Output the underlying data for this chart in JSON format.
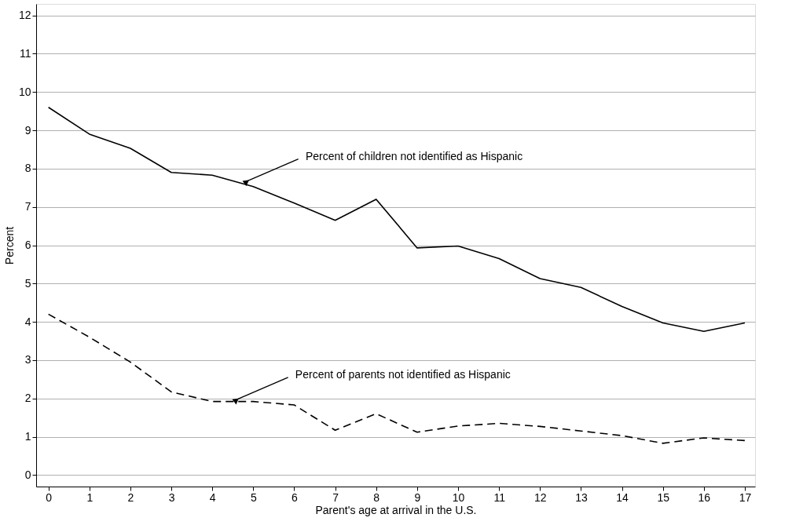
{
  "chart_data": {
    "type": "line",
    "xlabel": "Parent's age at arrival in the U.S.",
    "ylabel": "Percent",
    "x": [
      0,
      1,
      2,
      3,
      4,
      5,
      6,
      7,
      8,
      9,
      10,
      11,
      12,
      13,
      14,
      15,
      16,
      17
    ],
    "series": [
      {
        "color": "#000000",
        "line_style": "solid",
        "values": [
          9.6,
          8.9,
          8.53,
          7.9,
          7.83,
          7.53,
          7.1,
          6.65,
          7.2,
          5.93,
          5.98,
          5.65,
          5.13,
          4.9,
          4.4,
          3.97,
          3.75,
          3.97
        ]
      },
      {
        "color": "#000000",
        "line_style": "dashed",
        "values": [
          4.2,
          3.6,
          2.95,
          2.17,
          1.92,
          1.92,
          1.83,
          1.17,
          1.6,
          1.12,
          1.28,
          1.35,
          1.27,
          1.15,
          1.03,
          0.83,
          0.97,
          0.9
        ]
      }
    ],
    "annotations": [
      {
        "text": "Percent of children not identified as Hispanic",
        "x": 4.8,
        "y": 7.65
      },
      {
        "text": "Percent of parents not identified as Hispanic",
        "x": 4.55,
        "y": 1.95
      }
    ],
    "xlim": [
      -0.3,
      17.25
    ],
    "ylim": [
      -0.3,
      12.3
    ],
    "xticks": [
      0,
      1,
      2,
      3,
      4,
      5,
      6,
      7,
      8,
      9,
      10,
      11,
      12,
      13,
      14,
      15,
      16,
      17
    ],
    "yticks": [
      0,
      1,
      2,
      3,
      4,
      5,
      6,
      7,
      8,
      9,
      10,
      11,
      12
    ],
    "grid": "y",
    "marker": "none"
  }
}
